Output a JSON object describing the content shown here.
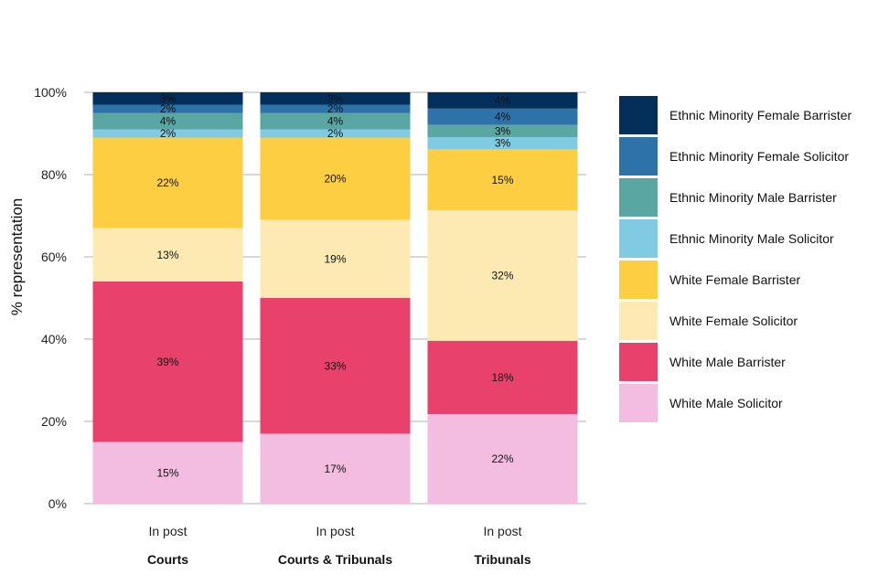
{
  "chart_data": {
    "type": "bar",
    "stacked": true,
    "percent": true,
    "ylabel": "% representation",
    "ylim": [
      0,
      100
    ],
    "yticks": [
      0,
      20,
      40,
      60,
      80,
      100
    ],
    "ytick_labels": [
      "0%",
      "20%",
      "40%",
      "60%",
      "80%",
      "100%"
    ],
    "grid": true,
    "legend_position": "right",
    "categories": [
      "Courts",
      "Courts & Tribunals",
      "Tribunals"
    ],
    "x_sublabels": [
      "In post",
      "In post",
      "In post"
    ],
    "series": [
      {
        "name": "White Male Solicitor",
        "color": "#f2bde0",
        "values": [
          15,
          17,
          22
        ],
        "labels": [
          "15%",
          "17%",
          "22%"
        ]
      },
      {
        "name": "White Male Barrister",
        "color": "#e8426c",
        "values": [
          39,
          33,
          18
        ],
        "labels": [
          "39%",
          "33%",
          "18%"
        ]
      },
      {
        "name": "White Female Solicitor",
        "color": "#fde9b2",
        "values": [
          13,
          19,
          32
        ],
        "labels": [
          "13%",
          "19%",
          "32%"
        ]
      },
      {
        "name": "White Female Barrister",
        "color": "#fece42",
        "values": [
          22,
          20,
          15
        ],
        "labels": [
          "22%",
          "20%",
          "15%"
        ]
      },
      {
        "name": "Ethnic Minority Male Solicitor",
        "color": "#80cbe3",
        "values": [
          2,
          2,
          3
        ],
        "labels": [
          "2%",
          "2%",
          "3%"
        ]
      },
      {
        "name": "Ethnic Minority Male Barrister",
        "color": "#5aa6a2",
        "values": [
          4,
          4,
          3
        ],
        "labels": [
          "4%",
          "4%",
          "3%"
        ]
      },
      {
        "name": "Ethnic Minority Female Solicitor",
        "color": "#2d72a8",
        "values": [
          2,
          2,
          4
        ],
        "labels": [
          "2%",
          "2%",
          "4%"
        ]
      },
      {
        "name": "Ethnic Minority Female Barrister",
        "color": "#02305a",
        "values": [
          3,
          3,
          4
        ],
        "labels": [
          "3%",
          "3%",
          "4%"
        ]
      }
    ],
    "legend_order": [
      "Ethnic Minority Female Barrister",
      "Ethnic Minority Female Solicitor",
      "Ethnic Minority Male Barrister",
      "Ethnic Minority Male Solicitor",
      "White Female Barrister",
      "White Female Solicitor",
      "White Male Barrister",
      "White Male Solicitor"
    ]
  }
}
